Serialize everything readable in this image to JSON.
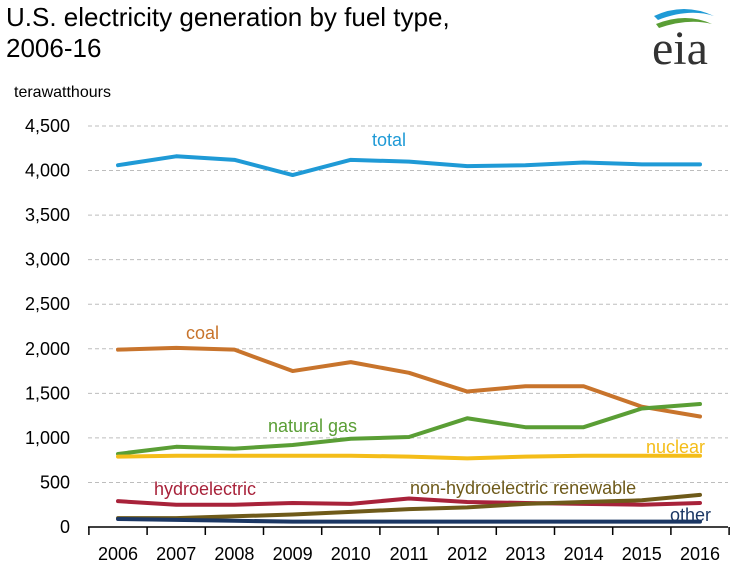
{
  "title": {
    "line1": "U.S. electricity generation by fuel type,",
    "line2": "2006-16"
  },
  "unit": "terawatthours",
  "logo": {
    "text": "eia"
  },
  "chart_data": {
    "type": "line",
    "title": "U.S. electricity generation by fuel type, 2006-16",
    "ylabel": "terawatthours",
    "xlabel": "",
    "ylim": [
      0,
      4500
    ],
    "yticks": [
      0,
      500,
      1000,
      1500,
      2000,
      2500,
      3000,
      3500,
      4000,
      4500
    ],
    "ytick_labels": [
      "0",
      "500",
      "1,000",
      "1,500",
      "2,000",
      "2,500",
      "3,000",
      "3,500",
      "4,000",
      "4,500"
    ],
    "categories": [
      "2006",
      "2007",
      "2008",
      "2009",
      "2010",
      "2011",
      "2012",
      "2013",
      "2014",
      "2015",
      "2016"
    ],
    "grid": "horizontal",
    "legend": "inline labels",
    "series": [
      {
        "name": "total",
        "color": "#1f9ad6",
        "values": [
          4060,
          4160,
          4120,
          3950,
          4120,
          4100,
          4050,
          4060,
          4090,
          4070,
          4070
        ]
      },
      {
        "name": "coal",
        "color": "#c8742c",
        "values": [
          1990,
          2010,
          1990,
          1750,
          1850,
          1730,
          1520,
          1580,
          1580,
          1350,
          1240
        ]
      },
      {
        "name": "natural gas",
        "color": "#5a9e35",
        "values": [
          820,
          900,
          880,
          920,
          990,
          1010,
          1220,
          1120,
          1120,
          1330,
          1380
        ]
      },
      {
        "name": "nuclear",
        "color": "#f4bd19",
        "values": [
          790,
          800,
          800,
          800,
          800,
          790,
          770,
          790,
          800,
          800,
          800
        ]
      },
      {
        "name": "hydroelectric",
        "color": "#a8223a",
        "values": [
          290,
          250,
          250,
          270,
          260,
          320,
          280,
          270,
          260,
          250,
          270
        ]
      },
      {
        "name": "non-hydroelectric renewable",
        "color": "#6e5a1a",
        "values": [
          100,
          100,
          120,
          140,
          170,
          200,
          220,
          260,
          280,
          300,
          360
        ]
      },
      {
        "name": "other",
        "color": "#1b3764",
        "values": [
          90,
          80,
          70,
          60,
          60,
          60,
          60,
          60,
          60,
          60,
          60
        ]
      }
    ]
  }
}
